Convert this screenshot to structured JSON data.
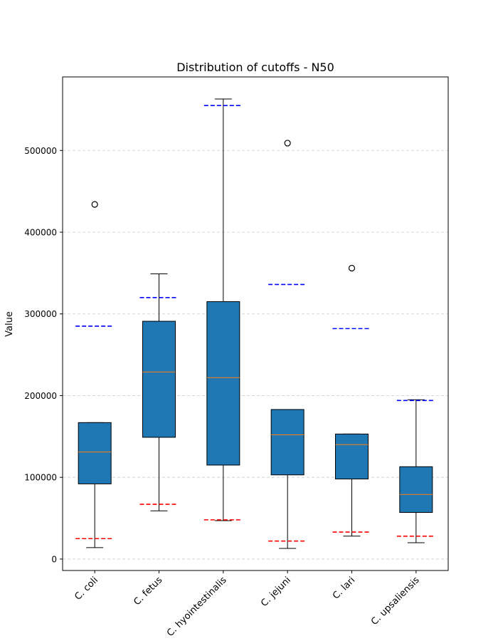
{
  "chart_data": {
    "type": "box",
    "title": "Distribution of cutoffs - N50",
    "xlabel": "",
    "ylabel": "Value",
    "ylim": [
      -14000,
      590000
    ],
    "yticks": [
      0,
      100000,
      200000,
      300000,
      400000,
      500000
    ],
    "ytick_labels": [
      "0",
      "100000",
      "200000",
      "300000",
      "400000",
      "500000"
    ],
    "grid": "y, dashed",
    "categories": [
      "C. coli",
      "C. fetus",
      "C. hyointestinalis",
      "C. jejuni",
      "C. lari",
      "C. upsaliensis"
    ],
    "boxes": [
      {
        "whisker_low": 14000,
        "q1": 92000,
        "median": 131000,
        "q3": 167000,
        "whisker_high": 167000,
        "outliers": [
          434000
        ],
        "upper_cutoff": 285000,
        "lower_cutoff": 25000
      },
      {
        "whisker_low": 59000,
        "q1": 149000,
        "median": 229000,
        "q3": 291000,
        "whisker_high": 349000,
        "outliers": [],
        "upper_cutoff": 320000,
        "lower_cutoff": 67000
      },
      {
        "whisker_low": 47000,
        "q1": 115000,
        "median": 222000,
        "q3": 315000,
        "whisker_high": 563000,
        "outliers": [],
        "upper_cutoff": 555000,
        "lower_cutoff": 48000
      },
      {
        "whisker_low": 13000,
        "q1": 103000,
        "median": 152000,
        "q3": 183000,
        "whisker_high": 183000,
        "outliers": [
          509000
        ],
        "upper_cutoff": 336000,
        "lower_cutoff": 22000
      },
      {
        "whisker_low": 28000,
        "q1": 98000,
        "median": 140000,
        "q3": 153000,
        "whisker_high": 153000,
        "outliers": [
          356000
        ],
        "upper_cutoff": 282000,
        "lower_cutoff": 33000
      },
      {
        "whisker_low": 20000,
        "q1": 57000,
        "median": 79000,
        "q3": 113000,
        "whisker_high": 195000,
        "outliers": [],
        "upper_cutoff": 194000,
        "lower_cutoff": 28000
      }
    ],
    "colors": {
      "box_fill": "#1f77b4",
      "median": "#ff7f0e",
      "upper_cutoff": "#0000ff",
      "lower_cutoff": "#ff0000",
      "grid": "#cccccc"
    }
  }
}
